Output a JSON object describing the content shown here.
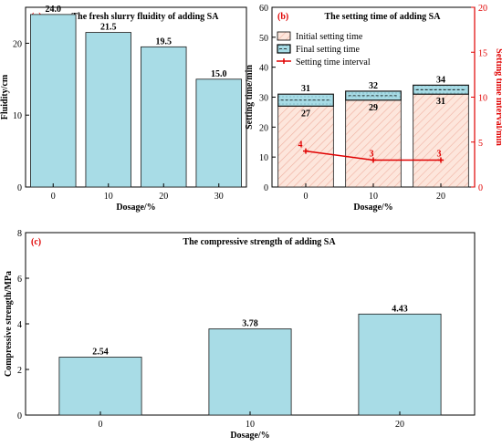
{
  "chart_data": [
    {
      "panel": "(a)",
      "type": "bar",
      "title": "The fresh slurry fluidity of adding SA",
      "xlabel": "Dosage/%",
      "ylabel": "Fluidity/cm",
      "categories": [
        "0",
        "10",
        "20",
        "30"
      ],
      "values": [
        24.0,
        21.5,
        19.5,
        15.0
      ],
      "value_labels": [
        "24.0",
        "21.5",
        "19.5",
        "15.0"
      ],
      "ylim": [
        0,
        25
      ],
      "yticks": [
        0,
        10,
        20
      ],
      "grid": false,
      "colors": {
        "bar": "#a8dce6",
        "edge": "#1a1a1a",
        "label": "#ff0000"
      }
    },
    {
      "panel": "(b)",
      "type": "bar",
      "title": "The setting time of adding SA",
      "xlabel": "Dosage/%",
      "ylabel": "Setting time/min",
      "ylabel_right": "Setting time interval/min",
      "categories": [
        "0",
        "10",
        "20"
      ],
      "series": [
        {
          "name": "Initial setting time",
          "values": [
            27,
            29,
            31
          ],
          "value_labels": [
            "27",
            "29",
            "31"
          ]
        },
        {
          "name": "Final setting time",
          "values": [
            31,
            32,
            34
          ],
          "value_labels": [
            "31",
            "32",
            "34"
          ]
        },
        {
          "name": "Setting time interval",
          "values": [
            4,
            3,
            3
          ],
          "value_labels": [
            "4",
            "3",
            "3"
          ],
          "axis": "right"
        }
      ],
      "ylim": [
        0,
        60
      ],
      "yticks": [
        0,
        10,
        20,
        30,
        40,
        50,
        60
      ],
      "ylim_right": [
        0,
        20
      ],
      "yticks_right": [
        0,
        5,
        10,
        15,
        20
      ],
      "legend": "top-left",
      "grid": false,
      "colors": {
        "initial": "#fde6dc",
        "initial_hatch": "#f0b0a0",
        "final": "#a8dce6",
        "interval": "#e00000",
        "edge": "#1a1a1a",
        "label": "#ff0000"
      }
    },
    {
      "panel": "(c)",
      "type": "bar",
      "title": "The compressive strength of adding SA",
      "xlabel": "Dosage/%",
      "ylabel": "Compressive strength/MPa",
      "categories": [
        "0",
        "10",
        "20"
      ],
      "values": [
        2.54,
        3.78,
        4.43
      ],
      "value_labels": [
        "2.54",
        "3.78",
        "4.43"
      ],
      "ylim": [
        0,
        8
      ],
      "yticks": [
        0,
        2,
        4,
        6,
        8
      ],
      "grid": false,
      "colors": {
        "bar": "#a8dce6",
        "edge": "#1a1a1a",
        "label": "#ff0000"
      }
    }
  ]
}
